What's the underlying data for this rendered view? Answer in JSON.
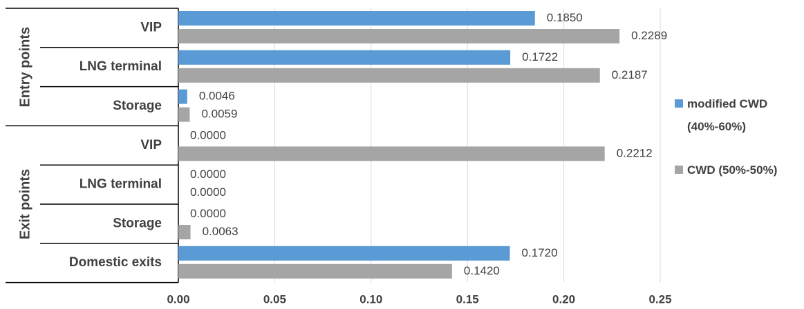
{
  "chart_data": {
    "type": "bar",
    "orientation": "horizontal",
    "title": "",
    "xlabel": "",
    "ylabel": "",
    "xlim": [
      0,
      0.25
    ],
    "x_ticks": [
      "0.00",
      "0.05",
      "0.10",
      "0.15",
      "0.20",
      "0.25"
    ],
    "grid": "vertical",
    "legend_position": "right",
    "groups": [
      {
        "label": "Entry points",
        "categories": [
          "VIP",
          "LNG terminal",
          "Storage"
        ]
      },
      {
        "label": "Exit points",
        "categories": [
          "VIP",
          "LNG terminal",
          "Storage",
          "Domestic exits"
        ]
      }
    ],
    "categories": [
      "VIP",
      "LNG terminal",
      "Storage",
      "VIP",
      "LNG terminal",
      "Storage",
      "Domestic exits"
    ],
    "series": [
      {
        "name_lines": [
          "modified CWD",
          "(40%-60%)"
        ],
        "color": "#5b9bd5",
        "values": [
          0.185,
          0.1722,
          0.0046,
          0.0,
          0.0,
          0.0,
          0.172
        ],
        "labels": [
          "0.1850",
          "0.1722",
          "0.0046",
          "0.0000",
          "0.0000",
          "0.0000",
          "0.1720"
        ]
      },
      {
        "name_lines": [
          "CWD (50%-50%)"
        ],
        "color": "#a5a5a5",
        "values": [
          0.2289,
          0.2187,
          0.0059,
          0.2212,
          0.0,
          0.0063,
          0.142
        ],
        "labels": [
          "0.2289",
          "0.2187",
          "0.0059",
          "0.2212",
          "0.0000",
          "0.0063",
          "0.1420"
        ]
      }
    ]
  }
}
